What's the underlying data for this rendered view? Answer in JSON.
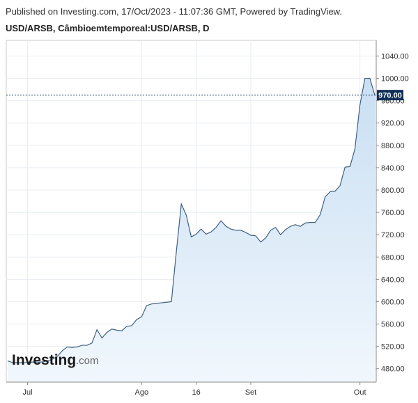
{
  "header": {
    "published": "Published on Investing.com, 17/Oct/2023 - 11:07:36 GMT, Powered by TradingView.",
    "subtitle": "USD/ARSB, Câmbioemtemporeal:USD/ARSB, D"
  },
  "logo": {
    "main": "Investing",
    "suffix": ".com"
  },
  "colors": {
    "line": "#3f5f7f",
    "area_top": "#c9dff3",
    "area_bottom": "#f1f7fd",
    "grid": "#e8edf2",
    "axis": "#8a8a8a",
    "last_price_bg": "#0f2f57"
  },
  "chart_data": {
    "type": "area",
    "title": "USD/ARSB, Câmbioemtemporeal:USD/ARSB, D",
    "xlabel": "",
    "ylabel": "",
    "ylim": [
      456,
      1068
    ],
    "y_ticks": [
      480,
      520,
      560,
      600,
      640,
      680,
      720,
      760,
      800,
      840,
      880,
      920,
      960,
      1000,
      1040
    ],
    "y_tick_labels": [
      "480.00",
      "520.00",
      "560.00",
      "600.00",
      "640.00",
      "680.00",
      "720.00",
      "760.00",
      "800.00",
      "840.00",
      "880.00",
      "920.00",
      "960.00",
      "1000.00",
      "1040.00"
    ],
    "x_ticks": [
      {
        "label": "Jul",
        "index": 4
      },
      {
        "label": "Ago",
        "index": 27
      },
      {
        "label": "16",
        "index": 38
      },
      {
        "label": "Set",
        "index": 49
      },
      {
        "label": "Out",
        "index": 71
      }
    ],
    "last_value": 970,
    "last_value_label": "970.00",
    "grid": true,
    "values": [
      494,
      491,
      491,
      491,
      491,
      492,
      492,
      492,
      494,
      497,
      502,
      512,
      519,
      518,
      519,
      522,
      522,
      526,
      550,
      535,
      545,
      551,
      549,
      548,
      556,
      557,
      568,
      573,
      593,
      596,
      597,
      598,
      599,
      600,
      690,
      775,
      755,
      716,
      721,
      730,
      721,
      725,
      733,
      745,
      735,
      730,
      728,
      728,
      724,
      719,
      718,
      707,
      714,
      728,
      733,
      720,
      729,
      735,
      738,
      735,
      741,
      742,
      742,
      756,
      788,
      797,
      798,
      808,
      841,
      842,
      874,
      952,
      1000,
      1000,
      970
    ]
  }
}
